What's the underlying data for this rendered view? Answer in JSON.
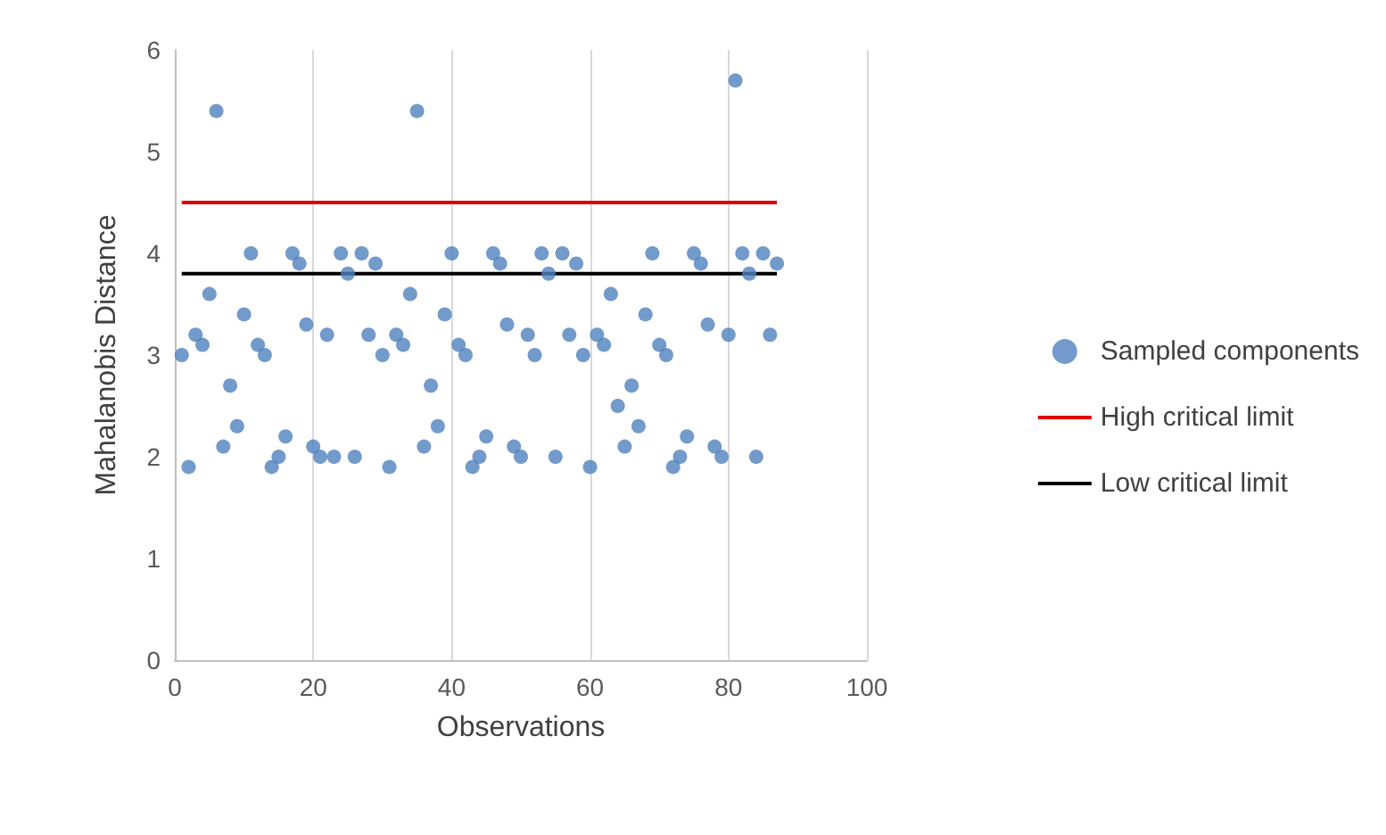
{
  "chart_data": {
    "type": "scatter",
    "xlabel": "Observations",
    "ylabel": "Mahalanobis Distance",
    "xlim": [
      0,
      100
    ],
    "xticks": [
      0,
      20,
      40,
      60,
      80,
      100
    ],
    "ylim": [
      0,
      6
    ],
    "yticks": [
      0,
      1,
      2,
      3,
      4,
      5,
      6
    ],
    "grid": "x",
    "legend": "right",
    "marker": "circle",
    "series": [
      {
        "name": "Sampled components",
        "color": "#4f81bd",
        "x": [
          1,
          2,
          3,
          4,
          5,
          6,
          7,
          8,
          9,
          10,
          11,
          12,
          13,
          14,
          15,
          16,
          17,
          18,
          19,
          20,
          21,
          22,
          23,
          24,
          25,
          26,
          27,
          28,
          29,
          30,
          31,
          32,
          33,
          34,
          35,
          36,
          37,
          38,
          39,
          40,
          41,
          42,
          43,
          44,
          45,
          46,
          47,
          48,
          49,
          50,
          51,
          52,
          53,
          54,
          55,
          56,
          57,
          58,
          59,
          60,
          61,
          62,
          63,
          64,
          65,
          66,
          67,
          68,
          69,
          70,
          71,
          72,
          73,
          74,
          75,
          76,
          77,
          78,
          79,
          80,
          81,
          82,
          83,
          84,
          85,
          86,
          87
        ],
        "values": [
          3.0,
          1.9,
          3.2,
          3.1,
          3.6,
          5.4,
          2.1,
          2.7,
          2.3,
          3.4,
          4.0,
          3.1,
          3.0,
          1.9,
          2.0,
          2.2,
          4.0,
          3.9,
          3.3,
          2.1,
          2.0,
          3.2,
          2.0,
          4.0,
          3.8,
          2.0,
          4.0,
          3.2,
          3.9,
          3.0,
          1.9,
          3.2,
          3.1,
          3.6,
          5.4,
          2.1,
          2.7,
          2.3,
          3.4,
          4.0,
          3.1,
          3.0,
          1.9,
          2.0,
          2.2,
          4.0,
          3.9,
          3.3,
          2.1,
          2.0,
          3.2,
          3.0,
          4.0,
          3.8,
          2.0,
          4.0,
          3.2,
          3.9,
          3.0,
          1.9,
          3.2,
          3.1,
          3.6,
          2.5,
          2.1,
          2.7,
          2.3,
          3.4,
          4.0,
          3.1,
          3.0,
          1.9,
          2.0,
          2.2,
          4.0,
          3.9,
          3.3,
          2.1,
          2.0,
          3.2,
          5.7,
          4.0,
          3.8,
          2.0,
          4.0,
          3.2,
          3.9
        ]
      },
      {
        "name": "High critical limit",
        "type": "line",
        "color": "#e00000",
        "x": [
          1,
          87
        ],
        "values": [
          4.5,
          4.5
        ],
        "marker": "none"
      },
      {
        "name": "Low critical limit",
        "type": "line",
        "color": "#000000",
        "x": [
          1,
          87
        ],
        "values": [
          3.8,
          3.8
        ],
        "marker": "none"
      }
    ]
  }
}
